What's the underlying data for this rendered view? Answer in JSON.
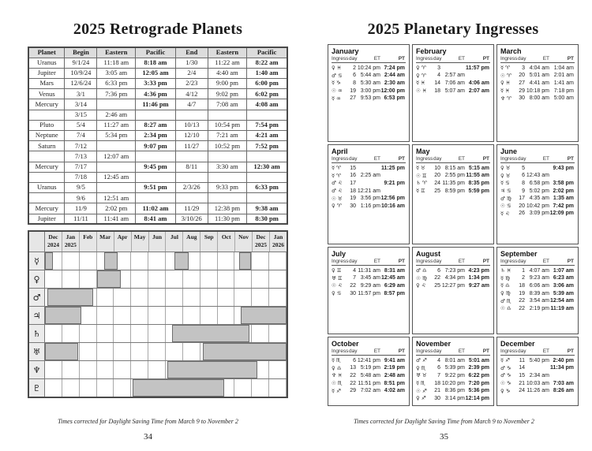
{
  "left_page": {
    "title": "2025 Retrograde Planets",
    "table": {
      "headers": [
        "Planet",
        "Begin",
        "Eastern",
        "Pacific",
        "End",
        "Eastern",
        "Pacific"
      ],
      "rows": [
        [
          "Uranus",
          "9/1/24",
          "11:18 am",
          "8:18 am",
          "1/30",
          "11:22 am",
          "8:22 am"
        ],
        [
          "Jupiter",
          "10/9/24",
          "3:05 am",
          "12:05 am",
          "2/4",
          "4:40 am",
          "1:40 am"
        ],
        [
          "Mars",
          "12/6/24",
          "6:33 pm",
          "3:33 pm",
          "2/23",
          "9:00 pm",
          "6:00 pm"
        ],
        [
          "Venus",
          "3/1",
          "7:36 pm",
          "4:36 pm",
          "4/12",
          "9:02 pm",
          "6:02 pm"
        ],
        [
          "Mercury",
          "3/14",
          "",
          "11:46 pm",
          "4/7",
          "7:08 am",
          "4:08 am"
        ],
        [
          "",
          "3/15",
          "2:46 am",
          "",
          "",
          "",
          ""
        ],
        [
          "Pluto",
          "5/4",
          "11:27 am",
          "8:27 am",
          "10/13",
          "10:54 pm",
          "7:54 pm"
        ],
        [
          "Neptune",
          "7/4",
          "5:34 pm",
          "2:34 pm",
          "12/10",
          "7:21 am",
          "4:21 am"
        ],
        [
          "Saturn",
          "7/12",
          "",
          "9:07 pm",
          "11/27",
          "10:52 pm",
          "7:52 pm"
        ],
        [
          "",
          "7/13",
          "12:07 am",
          "",
          "",
          "",
          ""
        ],
        [
          "Mercury",
          "7/17",
          "",
          "9:45 pm",
          "8/11",
          "3:30 am",
          "12:30 am"
        ],
        [
          "",
          "7/18",
          "12:45 am",
          "",
          "",
          "",
          ""
        ],
        [
          "Uranus",
          "9/5",
          "",
          "9:51 pm",
          "2/3/26",
          "9:33 pm",
          "6:33 pm"
        ],
        [
          "",
          "9/6",
          "12:51 am",
          "",
          "",
          "",
          ""
        ],
        [
          "Mercury",
          "11/9",
          "2:02 pm",
          "11:02 am",
          "11/29",
          "12:38 pm",
          "9:38 am"
        ],
        [
          "Jupiter",
          "11/11",
          "11:41 am",
          "8:41 am",
          "3/10/26",
          "11:30 pm",
          "8:30 pm"
        ]
      ]
    },
    "gantt": {
      "type": "gantt",
      "columns": [
        [
          "Dec",
          "2024"
        ],
        [
          "Jan",
          "2025"
        ],
        [
          "Feb",
          ""
        ],
        [
          "Mar",
          ""
        ],
        [
          "Apr",
          ""
        ],
        [
          "May",
          ""
        ],
        [
          "Jun",
          ""
        ],
        [
          "Jul",
          ""
        ],
        [
          "Aug",
          ""
        ],
        [
          "Sep",
          ""
        ],
        [
          "Oct",
          ""
        ],
        [
          "Nov",
          ""
        ],
        [
          "Dec",
          "2025"
        ],
        [
          "Jan",
          "2026"
        ]
      ],
      "axis_note": "column units are months, Dec 2024 through Jan 2026; bar values are month index + day fraction",
      "rows": [
        {
          "planet": "mercury",
          "glyph": "☿",
          "bars": [
            [
              0,
              0.45
            ],
            [
              3.42,
              4.2
            ],
            [
              7.52,
              8.32
            ],
            [
              11.27,
              11.93
            ]
          ]
        },
        {
          "planet": "venus",
          "glyph": "♀",
          "bars": [
            [
              3.0,
              4.37
            ]
          ]
        },
        {
          "planet": "mars",
          "glyph": "♂",
          "bars": [
            [
              0.16,
              2.79
            ]
          ]
        },
        {
          "planet": "jupiter",
          "glyph": "♃",
          "bars": [
            [
              0,
              2.11
            ],
            [
              11.33,
              14
            ]
          ]
        },
        {
          "planet": "saturn",
          "glyph": "♄",
          "bars": [
            [
              7.35,
              11.87
            ]
          ]
        },
        {
          "planet": "uranus",
          "glyph": "♅",
          "bars": [
            [
              0,
              1.94
            ],
            [
              9.13,
              14
            ]
          ]
        },
        {
          "planet": "neptune",
          "glyph": "♆",
          "bars": [
            [
              7.1,
              12.29
            ]
          ]
        },
        {
          "planet": "pluto",
          "glyph": "♇",
          "bars": [
            [
              5.1,
              10.39
            ]
          ]
        }
      ],
      "bar_color": "#c3c3c3"
    },
    "caption": "Times corrected for Daylight Saving Time from March 9 to November 2",
    "page_number": "34"
  },
  "right_page": {
    "title": "2025 Planetary Ingresses",
    "table_header": {
      "ingress": "Ingress",
      "day": "day",
      "et": "ET",
      "pt": "PT"
    },
    "months": [
      {
        "name": "January",
        "pt_bold": true,
        "rows": [
          [
            "♀",
            "♓",
            "2",
            "10:24 pm",
            "7:24 pm"
          ],
          [
            "♂",
            "♋",
            "6",
            "5:44 am",
            "2:44 am"
          ],
          [
            "☿",
            "♑",
            "8",
            "5:30 am",
            "2:30 am"
          ],
          [
            "☉",
            "♒",
            "19",
            "3:00 pm",
            "12:00 pm"
          ],
          [
            "☿",
            "♒",
            "27",
            "9:53 pm",
            "6:53 pm"
          ]
        ]
      },
      {
        "name": "February",
        "pt_bold": true,
        "rows": [
          [
            "♀",
            "♈",
            "3",
            "",
            "11:57 pm"
          ],
          [
            "♀",
            "♈",
            "4",
            "2:57 am",
            ""
          ],
          [
            "☿",
            "♓",
            "14",
            "7:06 am",
            "4:06 am"
          ],
          [
            "☉",
            "♓",
            "18",
            "5:07 am",
            "2:07 am"
          ]
        ]
      },
      {
        "name": "March",
        "pt_bold": false,
        "rows": [
          [
            "☿",
            "♈",
            "3",
            "4:04 am",
            "1:04 am"
          ],
          [
            "☉",
            "♈",
            "20",
            "5:01 am",
            "2:01 am"
          ],
          [
            "♀",
            "♓",
            "27",
            "4:41 am",
            "1:41 am"
          ],
          [
            "☿",
            "♓",
            "29",
            "10:18 pm",
            "7:18 pm"
          ],
          [
            "♆",
            "♈",
            "30",
            "8:00 am",
            "5:00 am"
          ]
        ]
      },
      {
        "name": "April",
        "pt_bold": true,
        "rows": [
          [
            "☿",
            "♈",
            "15",
            "",
            "11:25 pm"
          ],
          [
            "☿",
            "♈",
            "16",
            "2:25 am",
            ""
          ],
          [
            "♂",
            "♌",
            "17",
            "",
            "9:21 pm"
          ],
          [
            "♂",
            "♌",
            "18",
            "12:21 am",
            ""
          ],
          [
            "☉",
            "♉",
            "19",
            "3:56 pm",
            "12:56 pm"
          ],
          [
            "♀",
            "♈",
            "30",
            "1:16 pm",
            "10:16 am"
          ]
        ]
      },
      {
        "name": "May",
        "pt_bold": true,
        "rows": [
          [
            "☿",
            "♉",
            "10",
            "8:15 am",
            "5:15 am"
          ],
          [
            "☉",
            "♊",
            "20",
            "2:55 pm",
            "11:55 am"
          ],
          [
            "♄",
            "♈",
            "24",
            "11:35 pm",
            "8:35 pm"
          ],
          [
            "☿",
            "♊",
            "25",
            "8:59 pm",
            "5:59 pm"
          ]
        ]
      },
      {
        "name": "June",
        "pt_bold": true,
        "rows": [
          [
            "♀",
            "♉",
            "5",
            "",
            "9:43 pm"
          ],
          [
            "♀",
            "♉",
            "6",
            "12:43 am",
            ""
          ],
          [
            "☿",
            "♋",
            "8",
            "6:58 pm",
            "3:58 pm"
          ],
          [
            "♃",
            "♋",
            "9",
            "5:02 pm",
            "2:02 pm"
          ],
          [
            "♂",
            "♍",
            "17",
            "4:35 am",
            "1:35 am"
          ],
          [
            "☉",
            "♋",
            "20",
            "10:42 pm",
            "7:42 pm"
          ],
          [
            "☿",
            "♌",
            "26",
            "3:09 pm",
            "12:09 pm"
          ]
        ]
      },
      {
        "name": "July",
        "pt_bold": true,
        "rows": [
          [
            "♀",
            "♊",
            "4",
            "11:31 am",
            "8:31 am"
          ],
          [
            "♅",
            "♊",
            "7",
            "3:45 am",
            "12:45 am"
          ],
          [
            "☉",
            "♌",
            "22",
            "9:29 am",
            "6:29 am"
          ],
          [
            "♀",
            "♋",
            "30",
            "11:57 pm",
            "8:57 pm"
          ]
        ]
      },
      {
        "name": "August",
        "pt_bold": true,
        "rows": [
          [
            "♂",
            "♎",
            "6",
            "7:23 pm",
            "4:23 pm"
          ],
          [
            "☉",
            "♍",
            "22",
            "4:34 pm",
            "1:34 pm"
          ],
          [
            "♀",
            "♌",
            "25",
            "12:27 pm",
            "9:27 am"
          ]
        ]
      },
      {
        "name": "September",
        "pt_bold": true,
        "rows": [
          [
            "♄",
            "♓",
            "1",
            "4:07 am",
            "1:07 am"
          ],
          [
            "☿",
            "♍",
            "2",
            "9:23 am",
            "6:23 am"
          ],
          [
            "☿",
            "♎",
            "18",
            "6:06 am",
            "3:06 am"
          ],
          [
            "♀",
            "♍",
            "19",
            "8:39 am",
            "5:39 am"
          ],
          [
            "♂",
            "♏",
            "22",
            "3:54 am",
            "12:54 am"
          ],
          [
            "☉",
            "♎",
            "22",
            "2:19 pm",
            "11:19 am"
          ]
        ]
      },
      {
        "name": "October",
        "pt_bold": true,
        "rows": [
          [
            "☿",
            "♏",
            "6",
            "12:41 pm",
            "9:41 am"
          ],
          [
            "♀",
            "♎",
            "13",
            "5:19 pm",
            "2:19 pm"
          ],
          [
            "♆",
            "♓",
            "22",
            "5:48 am",
            "2:48 am"
          ],
          [
            "☉",
            "♏",
            "22",
            "11:51 pm",
            "8:51 pm"
          ],
          [
            "☿",
            "♐",
            "29",
            "7:02 am",
            "4:02 am"
          ]
        ]
      },
      {
        "name": "November",
        "pt_bold": true,
        "rows": [
          [
            "♂",
            "♐",
            "4",
            "8:01 am",
            "5:01 am"
          ],
          [
            "♀",
            "♏",
            "6",
            "5:39 pm",
            "2:39 pm"
          ],
          [
            "♅",
            "♉",
            "7",
            "9:22 pm",
            "6:22 pm"
          ],
          [
            "☿",
            "♏",
            "18",
            "10:20 pm",
            "7:20 pm"
          ],
          [
            "☉",
            "♐",
            "21",
            "8:36 pm",
            "5:36 pm"
          ],
          [
            "♀",
            "♐",
            "30",
            "3:14 pm",
            "12:14 pm"
          ]
        ]
      },
      {
        "name": "December",
        "pt_bold": true,
        "rows": [
          [
            "☿",
            "♐",
            "11",
            "5:40 pm",
            "2:40 pm"
          ],
          [
            "♂",
            "♑",
            "14",
            "",
            "11:34 pm"
          ],
          [
            "♂",
            "♑",
            "15",
            "2:34 am",
            ""
          ],
          [
            "☉",
            "♑",
            "21",
            "10:03 am",
            "7:03 am"
          ],
          [
            "♀",
            "♑",
            "24",
            "11:26 am",
            "8:26 am"
          ]
        ]
      }
    ],
    "caption": "Times corrected for Daylight Saving Time from March 9 to November 2",
    "page_number": "35"
  }
}
